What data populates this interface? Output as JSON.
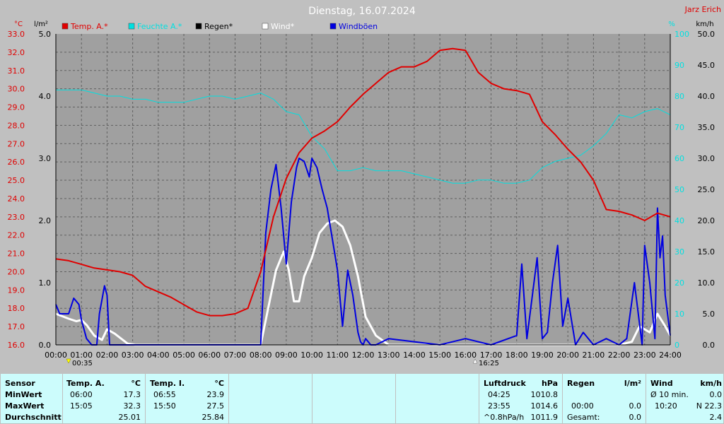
{
  "header": {
    "title": "Dienstag, 16.07.2024",
    "author": "Jarz Erich",
    "left_units": [
      "°C",
      "l/m²"
    ],
    "right_units": [
      "%",
      "km/h"
    ],
    "axis_times": {
      "min_marker": "00:35",
      "max_marker": "16:25"
    }
  },
  "legend": [
    {
      "label": "Temp. A.*",
      "color": "#e00000"
    },
    {
      "label": "Feuchte A.*",
      "color": "#00e0e0"
    },
    {
      "label": "Regen*",
      "color": "#000000"
    },
    {
      "label": "Wind*",
      "color": "#ffffff"
    },
    {
      "label": "Windböen",
      "color": "#0000e0"
    }
  ],
  "chart_data": {
    "type": "line",
    "title": "Dienstag, 16.07.2024",
    "x_labels": [
      "00:00",
      "01:00",
      "02:00",
      "03:00",
      "04:00",
      "05:00",
      "06:00",
      "07:00",
      "08:00",
      "09:00",
      "10:00",
      "11:00",
      "12:00",
      "13:00",
      "14:00",
      "15:00",
      "16:00",
      "17:00",
      "18:00",
      "19:00",
      "20:00",
      "21:00",
      "22:00",
      "23:00",
      "24:00"
    ],
    "xlim": [
      0,
      24
    ],
    "axes": {
      "temperature": {
        "unit": "°C",
        "range": [
          16,
          33
        ],
        "ticks": [
          "16.0",
          "17.0",
          "18.0",
          "19.0",
          "20.0",
          "21.0",
          "22.0",
          "23.0",
          "24.0",
          "25.0",
          "26.0",
          "27.0",
          "28.0",
          "29.0",
          "30.0",
          "31.0",
          "32.0",
          "33.0"
        ]
      },
      "rain": {
        "unit": "l/m²",
        "range": [
          0,
          5
        ],
        "ticks": [
          "0.0",
          "1.0",
          "2.0",
          "3.0",
          "4.0",
          "5.0"
        ]
      },
      "humidity": {
        "unit": "%",
        "range": [
          0,
          100
        ],
        "ticks": [
          "0",
          "10",
          "20",
          "30",
          "40",
          "50",
          "60",
          "70",
          "80",
          "90",
          "100"
        ]
      },
      "wind": {
        "unit": "km/h",
        "range": [
          0,
          50
        ],
        "ticks": [
          "0.0",
          "5.0",
          "10.0",
          "15.0",
          "20.0",
          "25.0",
          "30.0",
          "35.0",
          "40.0",
          "45.0",
          "50.0"
        ]
      }
    },
    "grid": true,
    "series": [
      {
        "name": "Temp. A.*",
        "axis": "temperature",
        "color": "#e00000",
        "width": 2,
        "x": [
          0,
          0.5,
          1,
          1.5,
          2,
          2.5,
          3,
          3.5,
          4,
          4.5,
          5,
          5.5,
          6,
          6.5,
          7,
          7.5,
          8,
          8.5,
          9,
          9.5,
          10,
          10.5,
          11,
          11.5,
          12,
          12.5,
          13,
          13.5,
          14,
          14.5,
          15,
          15.5,
          16,
          16.5,
          17,
          17.5,
          18,
          18.5,
          19,
          19.5,
          20,
          20.5,
          21,
          21.5,
          22,
          22.5,
          23,
          23.5,
          24
        ],
        "y": [
          20.7,
          20.6,
          20.4,
          20.2,
          20.1,
          20.0,
          19.8,
          19.2,
          18.9,
          18.6,
          18.2,
          17.8,
          17.6,
          17.6,
          17.7,
          18.0,
          20.0,
          23.0,
          25.1,
          26.5,
          27.3,
          27.7,
          28.2,
          29.0,
          29.7,
          30.3,
          30.9,
          31.2,
          31.2,
          31.5,
          32.1,
          32.2,
          32.1,
          30.9,
          30.3,
          30.0,
          29.9,
          29.7,
          28.2,
          27.5,
          26.7,
          26.0,
          25.0,
          23.4,
          23.3,
          23.1,
          22.8,
          23.2,
          23.0
        ]
      },
      {
        "name": "Feuchte A.*",
        "axis": "humidity",
        "color": "#00e0e0",
        "width": 1,
        "x": [
          0,
          0.5,
          1,
          1.5,
          2,
          2.5,
          3,
          3.5,
          4,
          4.5,
          5,
          5.5,
          6,
          6.5,
          7,
          7.5,
          8,
          8.5,
          9,
          9.5,
          10,
          10.5,
          11,
          11.5,
          12,
          12.5,
          13,
          13.5,
          14,
          14.5,
          15,
          15.5,
          16,
          16.5,
          17,
          17.5,
          18,
          18.5,
          19,
          19.5,
          20,
          20.5,
          21,
          21.5,
          22,
          22.5,
          23,
          23.5,
          24
        ],
        "y": [
          82,
          82,
          82,
          81,
          80,
          80,
          79,
          79,
          78,
          78,
          78,
          79,
          80,
          80,
          79,
          80,
          81,
          79,
          75,
          74,
          67,
          63,
          56,
          56,
          57,
          56,
          56,
          56,
          55,
          54,
          53,
          52,
          52,
          53,
          53,
          52,
          52,
          53,
          57,
          59,
          60,
          61,
          64,
          68,
          74,
          73,
          75,
          76,
          74
        ]
      },
      {
        "name": "Windböen",
        "axis": "wind",
        "color": "#0000e0",
        "width": 2,
        "x": [
          0,
          0.15,
          0.5,
          0.7,
          0.9,
          1.0,
          1.2,
          1.4,
          1.6,
          1.7,
          1.9,
          2.0,
          2.1,
          2.3,
          8.0,
          8.2,
          8.4,
          8.6,
          8.8,
          9.0,
          9.2,
          9.4,
          9.5,
          9.7,
          9.9,
          10.0,
          10.2,
          10.4,
          10.6,
          10.8,
          11.0,
          11.2,
          11.4,
          11.6,
          11.8,
          11.9,
          12.0,
          12.1,
          12.3,
          12.5,
          13.0,
          14.0,
          15.0,
          16.0,
          17.0,
          18.0,
          18.2,
          18.4,
          18.8,
          19.0,
          19.2,
          19.4,
          19.6,
          19.8,
          20.0,
          20.3,
          20.6,
          21.0,
          21.5,
          22.0,
          22.3,
          22.6,
          22.9,
          23.0,
          23.2,
          23.4,
          23.5,
          23.6,
          23.7,
          23.8,
          24.0
        ],
        "y": [
          6.5,
          5.0,
          5.0,
          7.5,
          6.5,
          4.0,
          1.0,
          0,
          0,
          5.0,
          9.5,
          8.0,
          0,
          0,
          0,
          18.0,
          25.0,
          29.0,
          22.0,
          13.0,
          23.0,
          28.5,
          30.0,
          29.5,
          27.0,
          30.0,
          28.5,
          25.0,
          22.0,
          17.0,
          12.0,
          3.0,
          12.0,
          8.0,
          2.0,
          0.5,
          0,
          1.0,
          0,
          0,
          1.0,
          0.5,
          0,
          1.0,
          0,
          1.5,
          13.0,
          1.0,
          14.0,
          1.0,
          2.0,
          10.0,
          16.0,
          3.0,
          7.5,
          0,
          2.0,
          0,
          1.0,
          0,
          1.0,
          10.0,
          0,
          16.0,
          10.0,
          1.0,
          22.0,
          14.0,
          17.5,
          8.0,
          1.5
        ]
      },
      {
        "name": "Wind*",
        "axis": "wind",
        "color": "#ffffff",
        "width": 3,
        "x": [
          0,
          0.5,
          0.8,
          1.0,
          1.2,
          1.5,
          1.8,
          2.0,
          2.3,
          2.8,
          3.1,
          8.0,
          8.3,
          8.6,
          8.9,
          9.1,
          9.3,
          9.5,
          9.7,
          10.0,
          10.3,
          10.6,
          10.9,
          11.2,
          11.5,
          11.8,
          12.1,
          12.5,
          13.0,
          14.0,
          22.0,
          22.5,
          22.8,
          23.2,
          23.5,
          23.8,
          24.0
        ],
        "y": [
          5.0,
          4.2,
          3.8,
          4.0,
          3.2,
          1.5,
          0.8,
          2.5,
          1.8,
          0.2,
          0,
          0,
          6.0,
          12.0,
          15.0,
          12.0,
          7.0,
          7.0,
          11.0,
          14.0,
          18.0,
          19.5,
          20.0,
          19.0,
          16.0,
          11.0,
          4.5,
          1.5,
          0,
          0,
          0,
          0.5,
          3.0,
          2.0,
          5.0,
          3.0,
          1.5
        ]
      },
      {
        "name": "Regen*",
        "axis": "rain",
        "color": "#000000",
        "width": 1,
        "x": [
          0,
          24
        ],
        "y": [
          0,
          0
        ]
      }
    ]
  },
  "table": {
    "sensor": {
      "header": "Sensor",
      "rows": [
        "MinWert",
        "MaxWert",
        "Durchschnitt"
      ]
    },
    "temp_a": {
      "header": "Temp. A.",
      "unit": "°C",
      "rows": [
        [
          "06:00",
          "17.3"
        ],
        [
          "15:05",
          "32.3"
        ],
        [
          "",
          "25.01"
        ]
      ]
    },
    "temp_i": {
      "header": "Temp. I.",
      "unit": "°C",
      "rows": [
        [
          "06:55",
          "23.9"
        ],
        [
          "15:50",
          "27.5"
        ],
        [
          "",
          "25.84"
        ]
      ]
    },
    "pressure": {
      "header": "Luftdruck",
      "unit": "hPa",
      "rows": [
        [
          "04:25",
          "1010.8"
        ],
        [
          "23:55",
          "1014.6"
        ],
        [
          "^0.8hPa/h",
          "1011.9"
        ]
      ]
    },
    "rain": {
      "header": "Regen",
      "unit": "l/m²",
      "rows": [
        [
          "",
          ""
        ],
        [
          "00:00",
          "0.0"
        ],
        [
          "Gesamt:",
          "0.0"
        ]
      ]
    },
    "wind": {
      "header": "Wind",
      "unit": "km/h",
      "rows": [
        [
          "Ø 10 min.",
          "0.0"
        ],
        [
          "10:20",
          "N 22.3"
        ],
        [
          "",
          "2.4"
        ]
      ]
    }
  }
}
